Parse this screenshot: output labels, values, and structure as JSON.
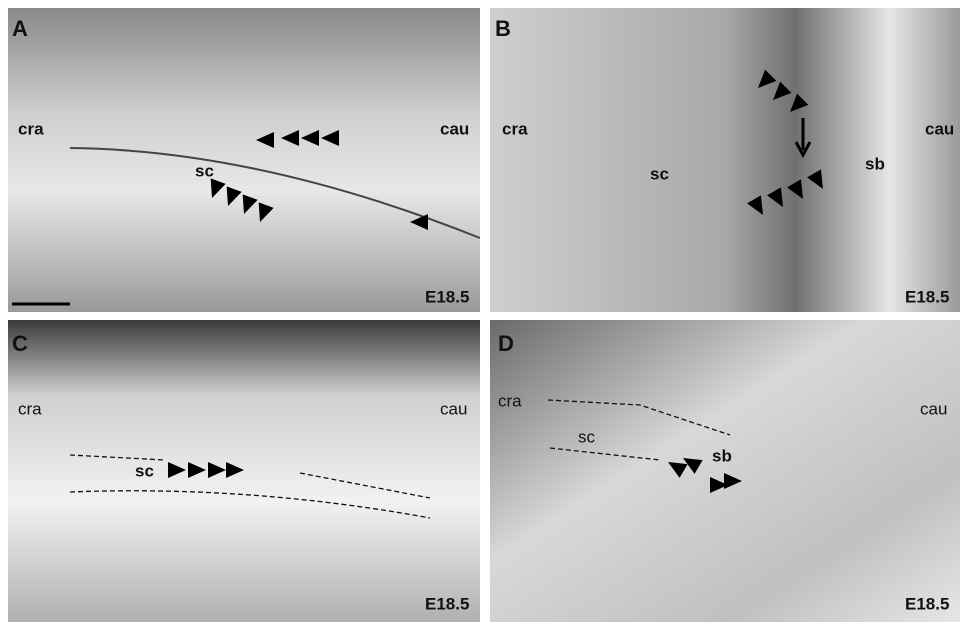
{
  "panels": [
    {
      "letter": "A",
      "labels": [
        "cra",
        "cau",
        "sc"
      ],
      "stage": "E18.5"
    },
    {
      "letter": "B",
      "labels": [
        "cra",
        "sc",
        "sb",
        "cau"
      ],
      "stage": "E18.5"
    },
    {
      "letter": "C",
      "labels": [
        "cra",
        "cau",
        "sc"
      ],
      "stage": "E18.5"
    },
    {
      "letter": "D",
      "labels": [
        "cra",
        "sc",
        "sb",
        "cau"
      ],
      "stage": "E18.5"
    }
  ]
}
